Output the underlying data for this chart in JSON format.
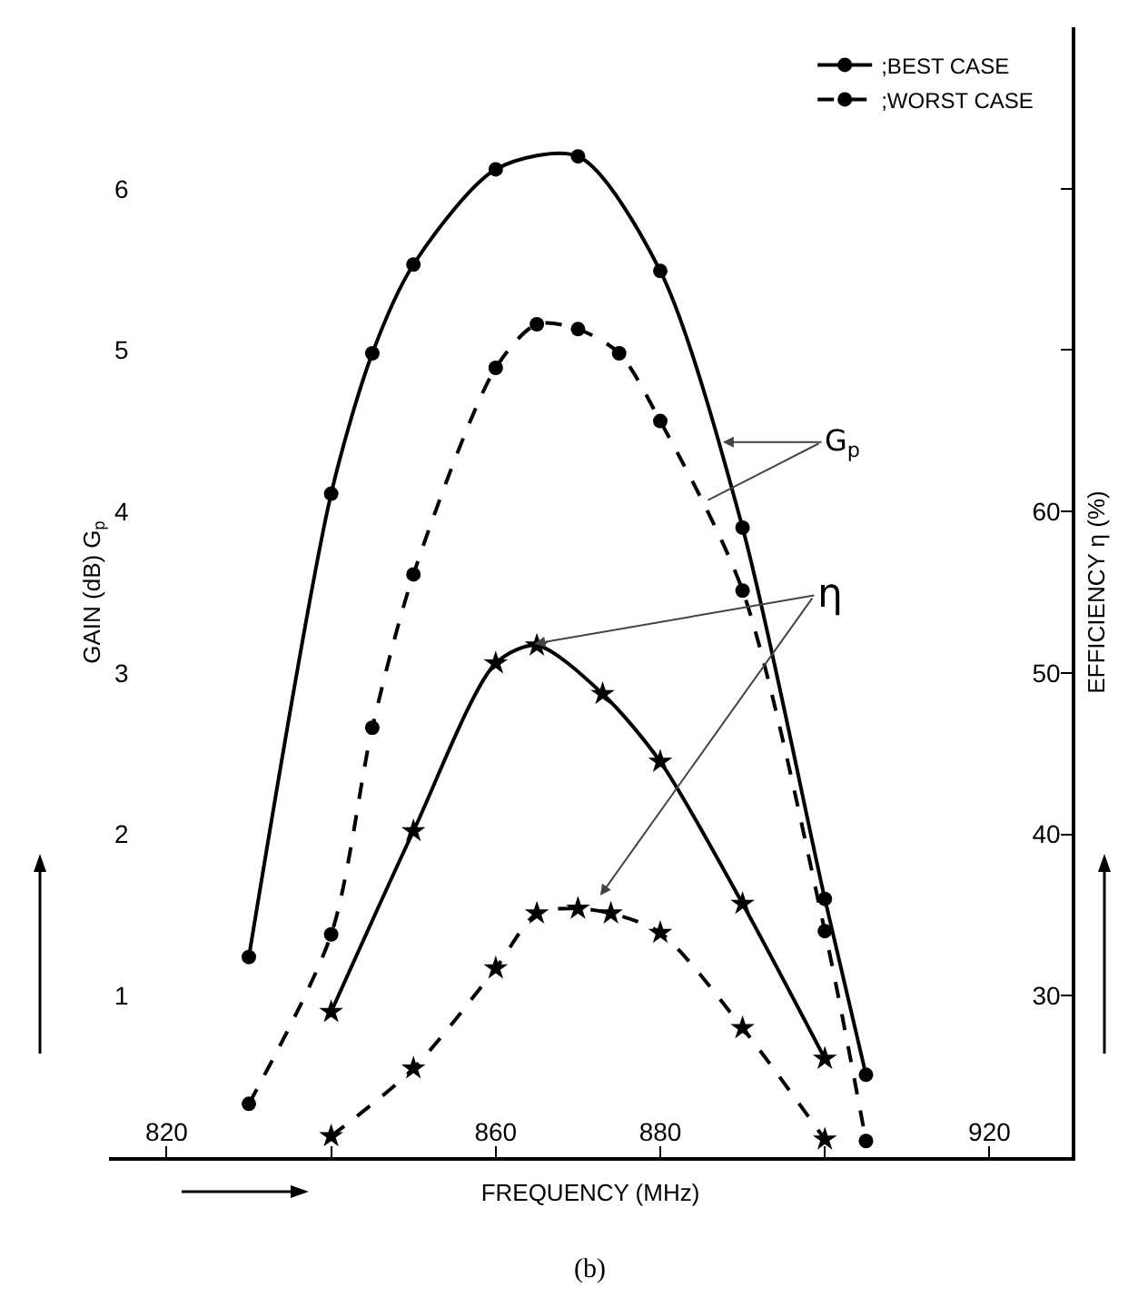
{
  "chart_data": {
    "type": "line",
    "xlabel": "FREQUENCY (MHz)",
    "ylabel": "GAIN (dB) G$_{p}$",
    "y2label": "EFFICIENCY η (%)",
    "xlim": [
      813,
      930
    ],
    "xticks": [
      820,
      {
        "value": 840,
        "label": null
      },
      860,
      880,
      {
        "value": 900,
        "label": null
      },
      920
    ],
    "ylim": [
      0,
      7
    ],
    "yticks": [
      1,
      2,
      3,
      4,
      5,
      6
    ],
    "y2lim": [
      20,
      90
    ],
    "y2ticks": [
      30,
      40,
      50,
      60,
      {
        "value": 70,
        "label": null
      },
      {
        "value": 80,
        "label": null
      }
    ],
    "grid": false,
    "legend": "top right",
    "series": [
      {
        "name": ";BEST CASE",
        "color": "#000000",
        "marker": "circle",
        "line_style": "solid",
        "x": [
          830,
          840,
          845,
          850,
          860,
          870,
          880,
          890,
          900,
          905
        ],
        "values": [
          1.24,
          4.11,
          4.98,
          5.53,
          6.12,
          6.2,
          5.49,
          3.9,
          1.6,
          0.51
        ]
      },
      {
        "name": ";WORST CASE",
        "color": "#000000",
        "marker": "circle",
        "line_style": "dashed",
        "x": [
          830,
          840,
          845,
          850,
          860,
          865,
          870,
          875,
          880,
          890,
          900,
          905
        ],
        "values": [
          0.33,
          1.38,
          2.66,
          3.61,
          4.89,
          5.16,
          5.13,
          4.98,
          4.56,
          3.51,
          1.4,
          0.1
        ]
      },
      {
        "color": "#000000",
        "marker": "star",
        "line_style": "solid",
        "axis": "y2",
        "x": [
          840,
          850,
          860,
          865,
          873,
          880,
          890,
          900
        ],
        "values": [
          29,
          40.2,
          50.6,
          51.7,
          48.7,
          44.5,
          35.7,
          26.1
        ]
      },
      {
        "color": "#000000",
        "marker": "star",
        "line_style": "dashed",
        "axis": "y2",
        "x": [
          840,
          850,
          860,
          865,
          870,
          874,
          880,
          890,
          900
        ],
        "values": [
          21.3,
          25.5,
          31.7,
          35.1,
          35.4,
          35.1,
          33.9,
          28,
          21.1
        ]
      }
    ],
    "annotations": [
      {
        "text": "G$_{p}$",
        "x": 887.6,
        "y": 4.43
      },
      {
        "text": "η",
        "x": 864.7,
        "y": 3.18
      },
      "(b)"
    ]
  }
}
